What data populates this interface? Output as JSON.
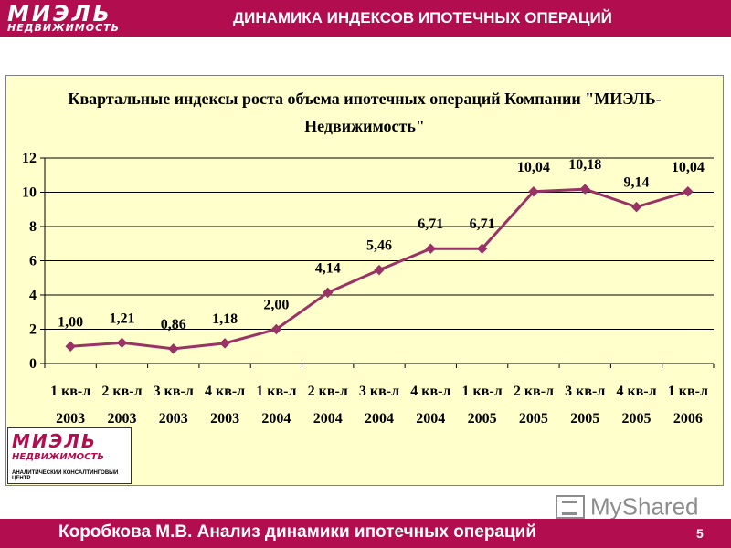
{
  "header": {
    "logo_line1": "МИЭЛЬ",
    "logo_line2": "НЕДВИЖИМОСТЬ",
    "title": "ДИНАМИКА ИНДЕКСОВ ИПОТЕЧНЫХ ОПЕРАЦИЙ"
  },
  "chart_data": {
    "type": "line",
    "title_line1": "Квартальные индексы роста объема ипотечных операций Компании \"МИЭЛЬ-",
    "title_line2": "Недвижимость\"",
    "categories": [
      [
        "1 кв-л",
        "2003"
      ],
      [
        "2 кв-л",
        "2003"
      ],
      [
        "3 кв-л",
        "2003"
      ],
      [
        "4 кв-л",
        "2003"
      ],
      [
        "1 кв-л",
        "2004"
      ],
      [
        "2 кв-л",
        "2004"
      ],
      [
        "3 кв-л",
        "2004"
      ],
      [
        "4 кв-л",
        "2004"
      ],
      [
        "1 кв-л",
        "2005"
      ],
      [
        "2 кв-л",
        "2005"
      ],
      [
        "3 кв-л",
        "2005"
      ],
      [
        "4 кв-л",
        "2005"
      ],
      [
        "1 кв-л",
        "2006"
      ]
    ],
    "values": [
      1.0,
      1.21,
      0.86,
      1.18,
      2.0,
      4.14,
      5.46,
      6.71,
      6.71,
      10.04,
      10.18,
      9.14,
      10.04
    ],
    "data_labels": [
      "1,00",
      "1,21",
      "0,86",
      "1,18",
      "2,00",
      "4,14",
      "5,46",
      "6,71",
      "6,71",
      "10,04",
      "10,18",
      "9,14",
      "10,04"
    ],
    "ylim": [
      0,
      12
    ],
    "yticks": [
      0,
      2,
      4,
      6,
      8,
      10,
      12
    ],
    "grid": "horizontal",
    "legend": "none",
    "background_color": "#ffffcc",
    "line_color": "#993366",
    "marker": "diamond"
  },
  "brand_logo": {
    "line1": "МИЭЛЬ",
    "line2": "НЕДВИЖИМОСТЬ",
    "line3": "АНАЛИТИЧЕСКИЙ КОНСАЛТИНГОВЫЙ ЦЕНТР"
  },
  "watermark": {
    "text": "MyShared"
  },
  "footer": {
    "text": "Коробкова М.В. Анализ динамики ипотечных операций",
    "page_number": "5"
  },
  "colors": {
    "brand": "#b10d4f"
  }
}
